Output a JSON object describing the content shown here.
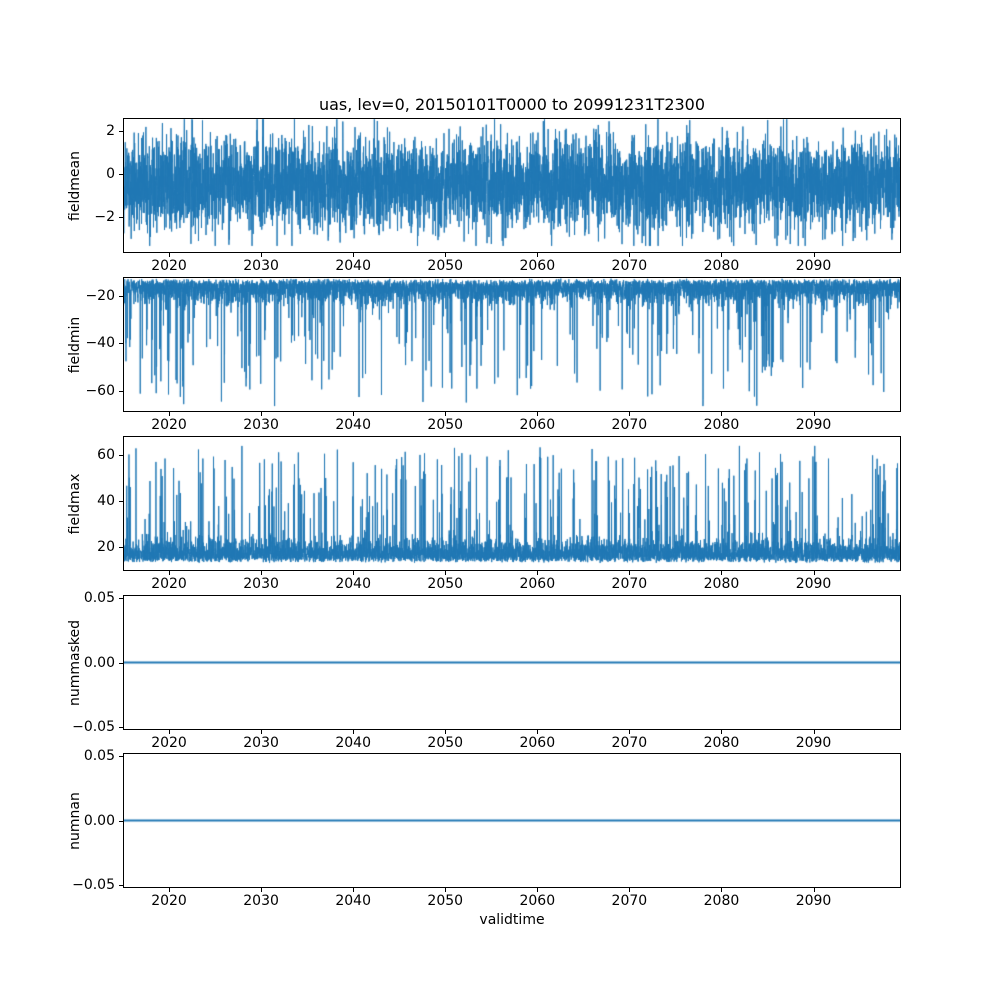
{
  "figure": {
    "title": "uas, lev=0, 20150101T0000 to 20991231T2300",
    "xlabel": "validtime",
    "background": "#ffffff",
    "line_color": "#1f77b4",
    "text_color": "#000000",
    "x_range": [
      2015,
      2099.5
    ],
    "xtick_values": [
      2020,
      2030,
      2040,
      2050,
      2060,
      2070,
      2080,
      2090
    ],
    "xtick_labels": [
      "2020",
      "2030",
      "2040",
      "2050",
      "2060",
      "2070",
      "2080",
      "2090"
    ]
  },
  "chart_data": [
    {
      "type": "line",
      "ylabel": "fieldmean",
      "ylim": [
        -3.68,
        2.6
      ],
      "ytick_values": [
        2,
        0,
        -2
      ],
      "ytick_labels": [
        "2",
        "0",
        "−2"
      ],
      "summary": "dense hourly noise, mean about -0.5, band roughly -2.7 to 1.7, extremes -3.3 to 2.5",
      "series": {
        "name": "fieldmean",
        "model": "gaussian",
        "mean": -0.45,
        "std": 1.05,
        "clip": [
          -3.35,
          2.55
        ],
        "points": 6000,
        "seed": 11
      }
    },
    {
      "type": "line",
      "ylabel": "fieldmin",
      "ylim": [
        -69,
        -12
      ],
      "ytick_values": [
        -20,
        -40,
        -60
      ],
      "ytick_labels": [
        "−20",
        "−40",
        "−60"
      ],
      "summary": "dense band near -13 to -25 with frequent downward spikes reaching about -66",
      "series": {
        "name": "fieldmin",
        "model": "spiky_down",
        "base": -12.6,
        "jitter": 2.0,
        "band": 4.2,
        "spike_prob": 0.05,
        "spike_min": 6,
        "spike_max": 47,
        "clip": [
          -66.5,
          -12.3
        ],
        "points": 6000,
        "seed": 22
      }
    },
    {
      "type": "line",
      "ylabel": "fieldmax",
      "ylim": [
        9.6,
        68.3
      ],
      "ytick_values": [
        60,
        40,
        20
      ],
      "ytick_labels": [
        "60",
        "40",
        "20"
      ],
      "summary": "dense band near 13 to 26 with frequent upward spikes reaching about 64",
      "series": {
        "name": "fieldmax",
        "model": "spiky_up",
        "base": 13.0,
        "jitter": 2.0,
        "band": 4.2,
        "spike_prob": 0.05,
        "spike_min": 6,
        "spike_max": 45,
        "clip": [
          12.8,
          64.0
        ],
        "points": 6000,
        "seed": 33
      }
    },
    {
      "type": "line",
      "ylabel": "nummasked",
      "ylim": [
        -0.0525,
        0.0525
      ],
      "ytick_values": [
        0.05,
        0,
        -0.05
      ],
      "ytick_labels": [
        "0.05",
        "0.00",
        "−0.05"
      ],
      "summary": "constant zero line across full time range",
      "series": {
        "name": "nummasked",
        "model": "constant",
        "value": 0,
        "points": 2,
        "seed": 44
      }
    },
    {
      "type": "line",
      "ylabel": "numnan",
      "ylim": [
        -0.0525,
        0.0525
      ],
      "ytick_values": [
        0.05,
        0,
        -0.05
      ],
      "ytick_labels": [
        "0.05",
        "0.00",
        "−0.05"
      ],
      "summary": "constant zero line across full time range",
      "series": {
        "name": "numnan",
        "model": "constant",
        "value": 0,
        "points": 2,
        "seed": 55
      }
    }
  ]
}
